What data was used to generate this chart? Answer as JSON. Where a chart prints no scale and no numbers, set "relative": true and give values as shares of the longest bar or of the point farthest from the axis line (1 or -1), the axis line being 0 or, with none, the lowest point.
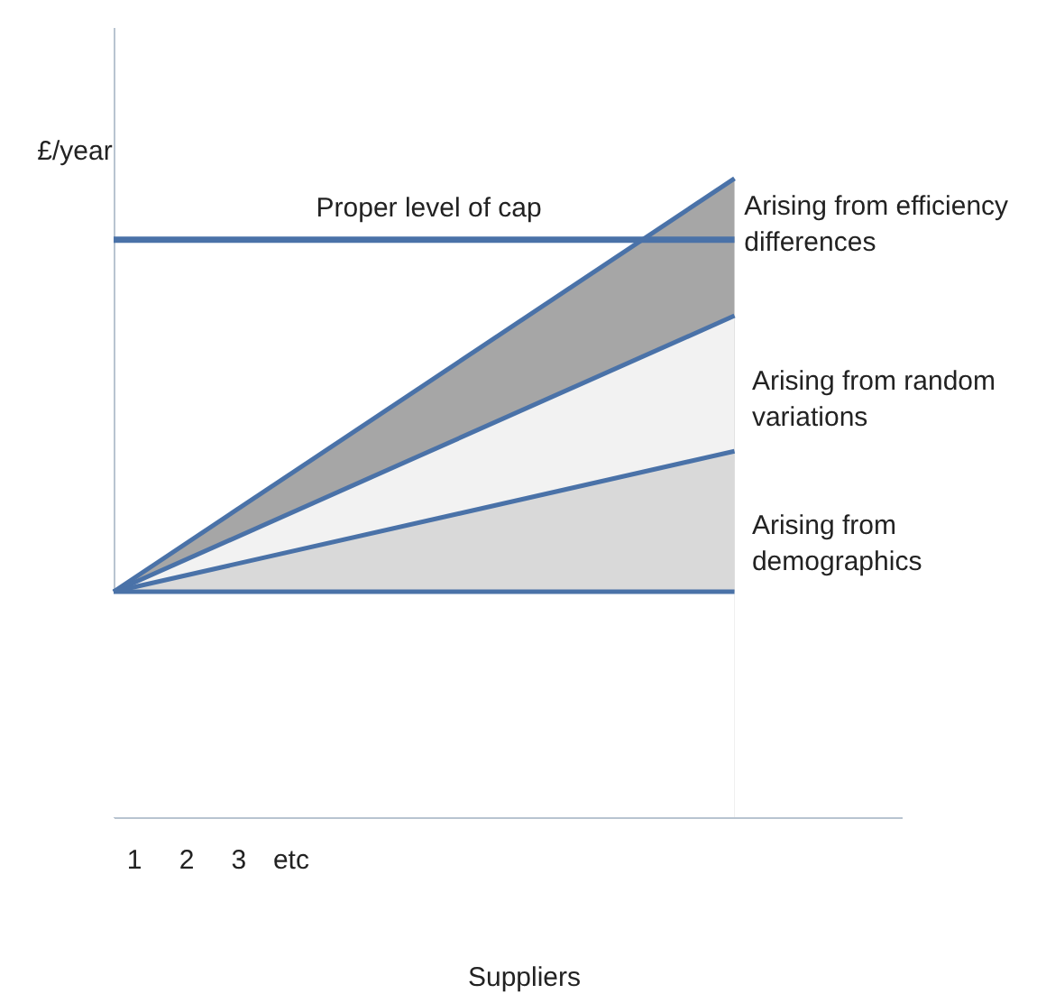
{
  "chart_data": {
    "type": "area",
    "relative": true,
    "grid": false,
    "tick_labels": "x",
    "xlabel": "Suppliers",
    "ylabel": "£/year",
    "x": [
      0.62,
      12.5
    ],
    "xlim": [
      0.62,
      15.7
    ],
    "xticks": [
      1,
      2,
      3,
      {
        "value": 4,
        "label": "etc"
      }
    ],
    "series": [
      {
        "color": "#a6a6a6",
        "values": [
          0.353,
          1
        ]
      },
      {
        "color": "#f2f2f2",
        "values": [
          0.353,
          0.785
        ]
      },
      {
        "color": "#d9d9d9",
        "values": [
          0.353,
          0.573
        ]
      },
      {
        "color": "#ffffff",
        "values": [
          0.353,
          0.353
        ]
      },
      {
        "type": "line",
        "color": "#4a72a8",
        "x": [
          0.62,
          12.5
        ],
        "values": [
          0.904,
          0.904
        ]
      }
    ],
    "annotations": [
      "Proper level of cap",
      "Arising from efficiency\ndifferences",
      "Arising from random\nvariations",
      "Arising from\ndemographics"
    ]
  }
}
